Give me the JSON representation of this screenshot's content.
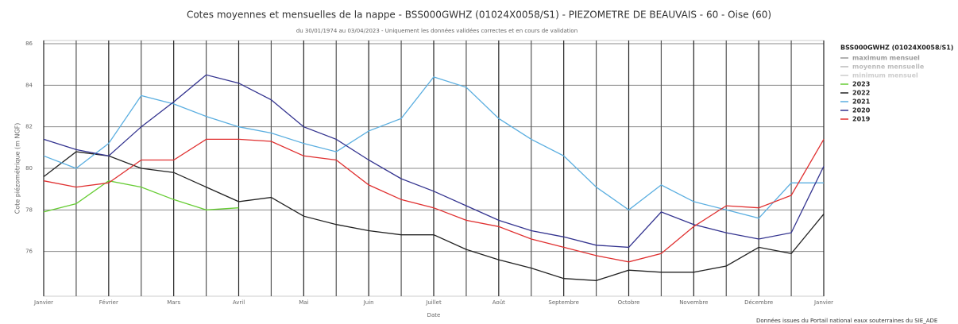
{
  "chart_data": {
    "type": "line",
    "title": "Cotes moyennes et mensuelles de la nappe - BSS000GWHZ (01024X0058/S1) - PIEZOMETRE DE BEAUVAIS - 60 - Oise (60)",
    "subtitle": "du 30/01/1974 au 03/04/2023 - Uniquement les données validées correctes et en cours de validation",
    "y_label": "Cote piézométrique (m NGF)",
    "x_label": "Date",
    "source": "Données issues du Portail national eaux souterraines du SIE_ADE",
    "legend_title": "BSS000GWHZ (01024X0058/S1)",
    "legend_position": "right",
    "legend_extra": [
      {
        "name": "maximum mensuel",
        "color": "#999999"
      },
      {
        "name": "moyenne mensuelle",
        "color": "#bbbbbb"
      },
      {
        "name": "minimum mensuel",
        "color": "#cccccc"
      }
    ],
    "categories": [
      "Janvier",
      null,
      "Février",
      null,
      "Mars",
      null,
      "Avril",
      null,
      "Mai",
      null,
      "Juin",
      null,
      "Juillet",
      null,
      "Août",
      null,
      "Septembre",
      null,
      "Octobre",
      null,
      "Novembre",
      null,
      "Décembre",
      null,
      "Janvier"
    ],
    "ylim": [
      74,
      86
    ],
    "yticks": [
      76,
      78,
      80,
      82,
      84,
      86
    ],
    "grid": true,
    "series": [
      {
        "name": "2023",
        "color": "#66cc33",
        "values": [
          77.9,
          78.3,
          79.4,
          79.1,
          78.5,
          78.0,
          78.1,
          null,
          null,
          null,
          null,
          null,
          null,
          null,
          null,
          null,
          null,
          null,
          null,
          null,
          null,
          null,
          null,
          null,
          null
        ]
      },
      {
        "name": "2022",
        "color": "#222222",
        "values": [
          79.6,
          80.8,
          80.6,
          80.0,
          79.8,
          79.1,
          78.4,
          78.6,
          77.7,
          77.3,
          77.0,
          76.8,
          76.8,
          76.1,
          75.6,
          75.2,
          74.7,
          74.6,
          75.1,
          75.0,
          75.0,
          75.3,
          76.2,
          75.9,
          77.8
        ]
      },
      {
        "name": "2021",
        "color": "#5aaee0",
        "values": [
          80.6,
          80.0,
          81.2,
          83.5,
          83.1,
          82.5,
          82.0,
          81.7,
          81.2,
          80.8,
          81.8,
          82.4,
          84.4,
          83.9,
          82.4,
          81.4,
          80.6,
          79.1,
          78.0,
          79.2,
          78.4,
          78.0,
          77.6,
          79.3,
          79.3
        ]
      },
      {
        "name": "2020",
        "color": "#33338f",
        "values": [
          81.4,
          80.9,
          80.6,
          82.0,
          83.2,
          84.5,
          84.1,
          83.3,
          82.0,
          81.4,
          80.4,
          79.5,
          78.9,
          78.2,
          77.5,
          77.0,
          76.7,
          76.3,
          76.2,
          77.9,
          77.3,
          76.9,
          76.6,
          76.9,
          80.1
        ]
      },
      {
        "name": "2019",
        "color": "#e03030",
        "values": [
          79.4,
          79.1,
          79.3,
          80.4,
          80.4,
          81.4,
          81.4,
          81.3,
          80.6,
          80.4,
          79.2,
          78.5,
          78.1,
          77.5,
          77.2,
          76.6,
          76.2,
          75.8,
          75.5,
          75.9,
          77.2,
          78.2,
          78.1,
          78.7,
          81.4
        ]
      }
    ]
  }
}
